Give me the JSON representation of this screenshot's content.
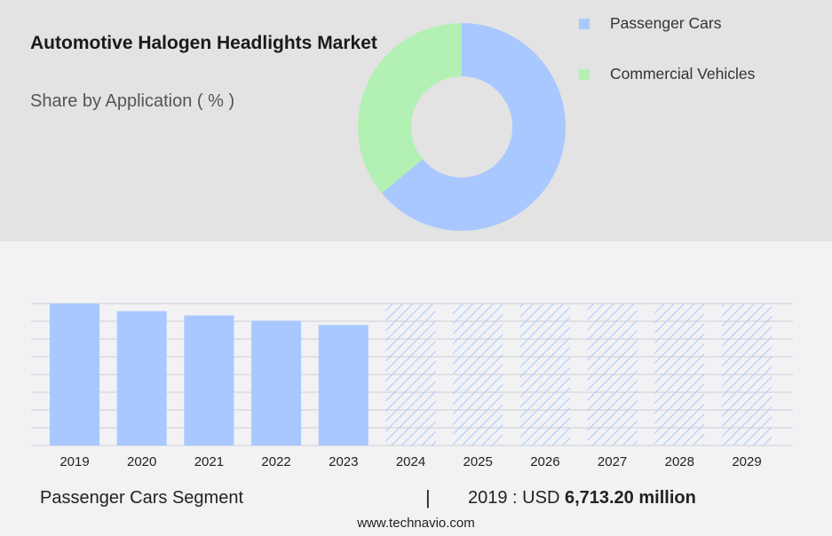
{
  "header": {
    "title": "Automotive Halogen Headlights Market",
    "subtitle": "Share by Application ( % )"
  },
  "colors": {
    "passenger": "#a8c8ff",
    "commercial": "#b3f0b3",
    "hatch": "#a8c8ff"
  },
  "chart_data": [
    {
      "type": "pie",
      "title": "Share by Application ( % )",
      "series": [
        {
          "name": "Passenger Cars",
          "value": 64
        },
        {
          "name": "Commercial Vehicles",
          "value": 36
        }
      ]
    },
    {
      "type": "bar",
      "categories": [
        "2019",
        "2020",
        "2021",
        "2022",
        "2023",
        "2024",
        "2025",
        "2026",
        "2027",
        "2028",
        "2029"
      ],
      "values": [
        6713.2,
        6350,
        6150,
        5900,
        5700,
        null,
        null,
        null,
        null,
        null,
        null
      ],
      "forecast_categories": [
        "2024",
        "2025",
        "2026",
        "2027",
        "2028",
        "2029"
      ],
      "ylim": [
        0,
        6713.2
      ],
      "grid": true
    }
  ],
  "footer": {
    "segment_label": "Passenger Cars Segment",
    "separator": "|",
    "year_label": "2019 : USD",
    "value_label": "6,713.20 million",
    "source": "www.technavio.com"
  }
}
